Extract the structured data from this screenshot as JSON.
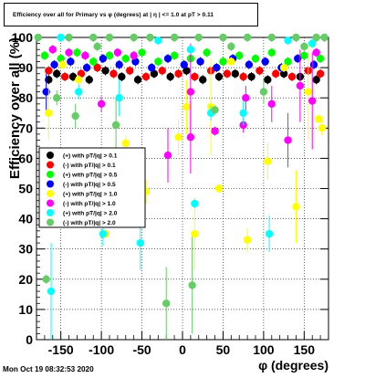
{
  "chart_data": {
    "type": "scatter",
    "title": "Efficiency over all for Primary vs φ (degrees) at | η | <= 1.0 at pT > 0.11",
    "xlabel": "φ (degrees)",
    "ylabel": "Efficiency over all (%)",
    "xlim": [
      -180,
      180
    ],
    "ylim": [
      0,
      100
    ],
    "xticks": [
      -150,
      -100,
      -50,
      0,
      50,
      100,
      150
    ],
    "yticks": [
      0,
      10,
      20,
      30,
      40,
      50,
      60,
      70,
      80,
      90,
      100
    ],
    "grid": true,
    "legend_placement": "left-middle",
    "series": [
      {
        "name": "(+) with pT/|q| > 0.1",
        "color": "#000000",
        "points": [
          [
            -165,
            86
          ],
          [
            -155,
            88
          ],
          [
            -135,
            87
          ],
          [
            -115,
            86
          ],
          [
            -95,
            89
          ],
          [
            -75,
            87
          ],
          [
            -55,
            86
          ],
          [
            -35,
            88
          ],
          [
            -15,
            87
          ],
          [
            5,
            89
          ],
          [
            25,
            86
          ],
          [
            45,
            87
          ],
          [
            65,
            88
          ],
          [
            85,
            87
          ],
          [
            105,
            86
          ],
          [
            125,
            88
          ],
          [
            145,
            87
          ],
          [
            165,
            86
          ]
        ]
      },
      {
        "name": "(-) with pT/|q| > 0.1",
        "color": "#ff0000",
        "points": [
          [
            -165,
            89
          ],
          [
            -145,
            87
          ],
          [
            -125,
            88
          ],
          [
            -105,
            90
          ],
          [
            -85,
            88
          ],
          [
            -65,
            89
          ],
          [
            -45,
            87
          ],
          [
            -25,
            89
          ],
          [
            -5,
            88
          ],
          [
            15,
            87
          ],
          [
            35,
            89
          ],
          [
            55,
            88
          ],
          [
            75,
            87
          ],
          [
            95,
            89
          ],
          [
            115,
            88
          ],
          [
            135,
            87
          ],
          [
            155,
            89
          ],
          [
            170,
            88
          ]
        ]
      },
      {
        "name": "(+) with pT/|q| > 0.5",
        "color": "#00ff00",
        "points": [
          [
            -170,
            94
          ],
          [
            -150,
            93
          ],
          [
            -130,
            95
          ],
          [
            -110,
            92
          ],
          [
            -90,
            94
          ],
          [
            -70,
            93
          ],
          [
            -50,
            95
          ],
          [
            -30,
            92
          ],
          [
            -10,
            94
          ],
          [
            10,
            93
          ],
          [
            30,
            95
          ],
          [
            50,
            92
          ],
          [
            70,
            94
          ],
          [
            90,
            93
          ],
          [
            110,
            95
          ],
          [
            130,
            92
          ],
          [
            150,
            94
          ],
          [
            170,
            93
          ]
        ]
      },
      {
        "name": "(-) with pT/|q| > 0.5",
        "color": "#0000ff",
        "points": [
          [
            -168,
            82
          ],
          [
            -158,
            91
          ],
          [
            -138,
            92
          ],
          [
            -118,
            90
          ],
          [
            -98,
            93
          ],
          [
            -78,
            91
          ],
          [
            -58,
            92
          ],
          [
            -38,
            90
          ],
          [
            -18,
            93
          ],
          [
            2,
            91
          ],
          [
            22,
            92
          ],
          [
            42,
            90
          ],
          [
            62,
            93
          ],
          [
            82,
            91
          ],
          [
            102,
            92
          ],
          [
            122,
            90
          ],
          [
            142,
            93
          ],
          [
            162,
            91
          ]
        ]
      },
      {
        "name": "(+) with pT/|q| > 1.0",
        "color": "#ffff00",
        "points": [
          [
            -165,
            75
          ],
          [
            -148,
            91
          ],
          [
            -128,
            86
          ],
          [
            -95,
            35
          ],
          [
            -70,
            65
          ],
          [
            -45,
            49
          ],
          [
            -5,
            67
          ],
          [
            5,
            77
          ],
          [
            15,
            35
          ],
          [
            35,
            77
          ],
          [
            45,
            50
          ],
          [
            60,
            92
          ],
          [
            80,
            33
          ],
          [
            105,
            59
          ],
          [
            125,
            90
          ],
          [
            140,
            44
          ],
          [
            155,
            82
          ],
          [
            168,
            73
          ],
          [
            172,
            70
          ]
        ]
      },
      {
        "name": "(-) with pT/|q| > 1.0",
        "color": "#ff00ff",
        "points": [
          [
            -160,
            96
          ],
          [
            -140,
            95
          ],
          [
            -120,
            94
          ],
          [
            -100,
            78
          ],
          [
            -80,
            95
          ],
          [
            -60,
            94
          ],
          [
            -18,
            61
          ],
          [
            10,
            67
          ],
          [
            10,
            82
          ],
          [
            40,
            69
          ],
          [
            75,
            71
          ],
          [
            78,
            80
          ],
          [
            110,
            78
          ],
          [
            130,
            66
          ],
          [
            145,
            84
          ],
          [
            160,
            79
          ],
          [
            165,
            95
          ]
        ]
      },
      {
        "name": "(+) with pT/|q| > 2.0",
        "color": "#00ffff",
        "points": [
          [
            -162,
            16
          ],
          [
            -150,
            100
          ],
          [
            -128,
            82
          ],
          [
            -98,
            35
          ],
          [
            -78,
            80
          ],
          [
            -52,
            32
          ],
          [
            -30,
            99
          ],
          [
            10,
            96
          ],
          [
            15,
            45
          ],
          [
            35,
            75
          ],
          [
            75,
            75
          ],
          [
            107,
            35
          ],
          [
            130,
            99
          ],
          [
            160,
            98
          ]
        ]
      },
      {
        "name": "(-) with pT/|q| > 2.0",
        "color": "#66cc66",
        "points": [
          [
            -168,
            20
          ],
          [
            -155,
            80
          ],
          [
            -132,
            74
          ],
          [
            -105,
            97
          ],
          [
            -82,
            71
          ],
          [
            -20,
            12
          ],
          [
            12,
            18
          ],
          [
            40,
            76
          ],
          [
            60,
            97
          ],
          [
            100,
            82
          ],
          [
            150,
            97
          ],
          [
            165,
            100
          ],
          [
            -178,
            100
          ],
          [
            -140,
            100
          ],
          [
            -110,
            100
          ],
          [
            -90,
            100
          ],
          [
            -60,
            100
          ],
          [
            -40,
            100
          ],
          [
            -10,
            100
          ],
          [
            20,
            100
          ],
          [
            50,
            100
          ],
          [
            80,
            100
          ],
          [
            110,
            100
          ],
          [
            140,
            100
          ],
          [
            175,
            100
          ]
        ]
      }
    ]
  },
  "footer": {
    "timestamp": "Mon Oct 19 08:32:53 2020"
  }
}
